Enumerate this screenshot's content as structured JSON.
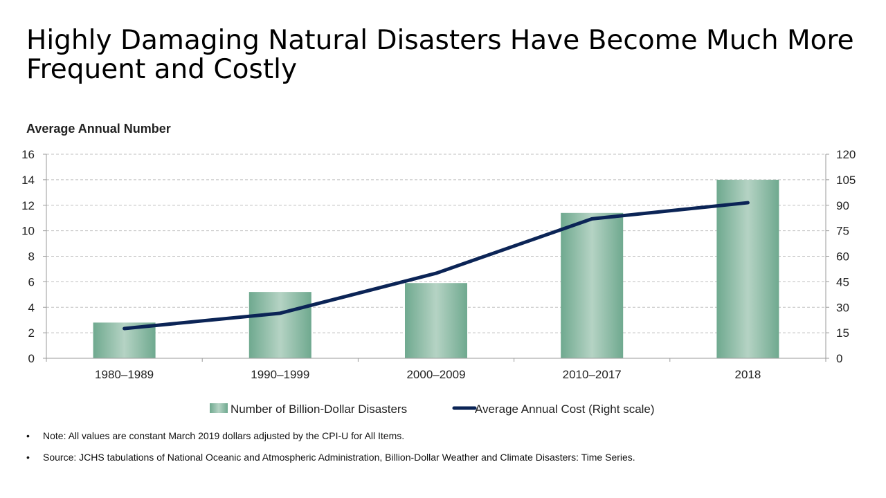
{
  "title": "Highly Damaging Natural Disasters Have Become Much More Frequent and Costly",
  "notes": [
    "Note: All values are constant March 2019 dollars adjusted by the CPI-U for All Items.",
    "Source: JCHS tabulations of National Oceanic and Atmospheric Administration, Billion-Dollar Weather and Climate Disasters: Time Series."
  ],
  "bullet_glyph": "•",
  "colors": {
    "bar_dark": "#6fa98f",
    "bar_light": "#b5d3c4",
    "line": "#0b2456",
    "grid": "#bfbfbf",
    "axis": "#9a9a9a"
  },
  "chart_data": {
    "type": "bar",
    "ylabel": "Average Annual Number",
    "categories": [
      "1980–1989",
      "1990–1999",
      "2000–2009",
      "2010–2017",
      "2018"
    ],
    "ylim": [
      0,
      16
    ],
    "yticks": [
      "0",
      "2",
      "4",
      "6",
      "8",
      "10",
      "12",
      "14",
      "16"
    ],
    "y2lim": [
      0,
      120
    ],
    "y2ticks": [
      "0",
      "15",
      "30",
      "45",
      "60",
      "75",
      "90",
      "105",
      "120"
    ],
    "grid": true,
    "legend_position": "bottom",
    "series": [
      {
        "name": "Number of Billion-Dollar Disasters",
        "type": "bar",
        "axis": "left",
        "values": [
          2.8,
          5.2,
          5.9,
          11.4,
          14.0
        ]
      },
      {
        "name": "Average Annual Cost (Right scale)",
        "type": "line",
        "axis": "right",
        "values": [
          17.5,
          26.5,
          50.0,
          82.0,
          91.5
        ]
      }
    ]
  }
}
